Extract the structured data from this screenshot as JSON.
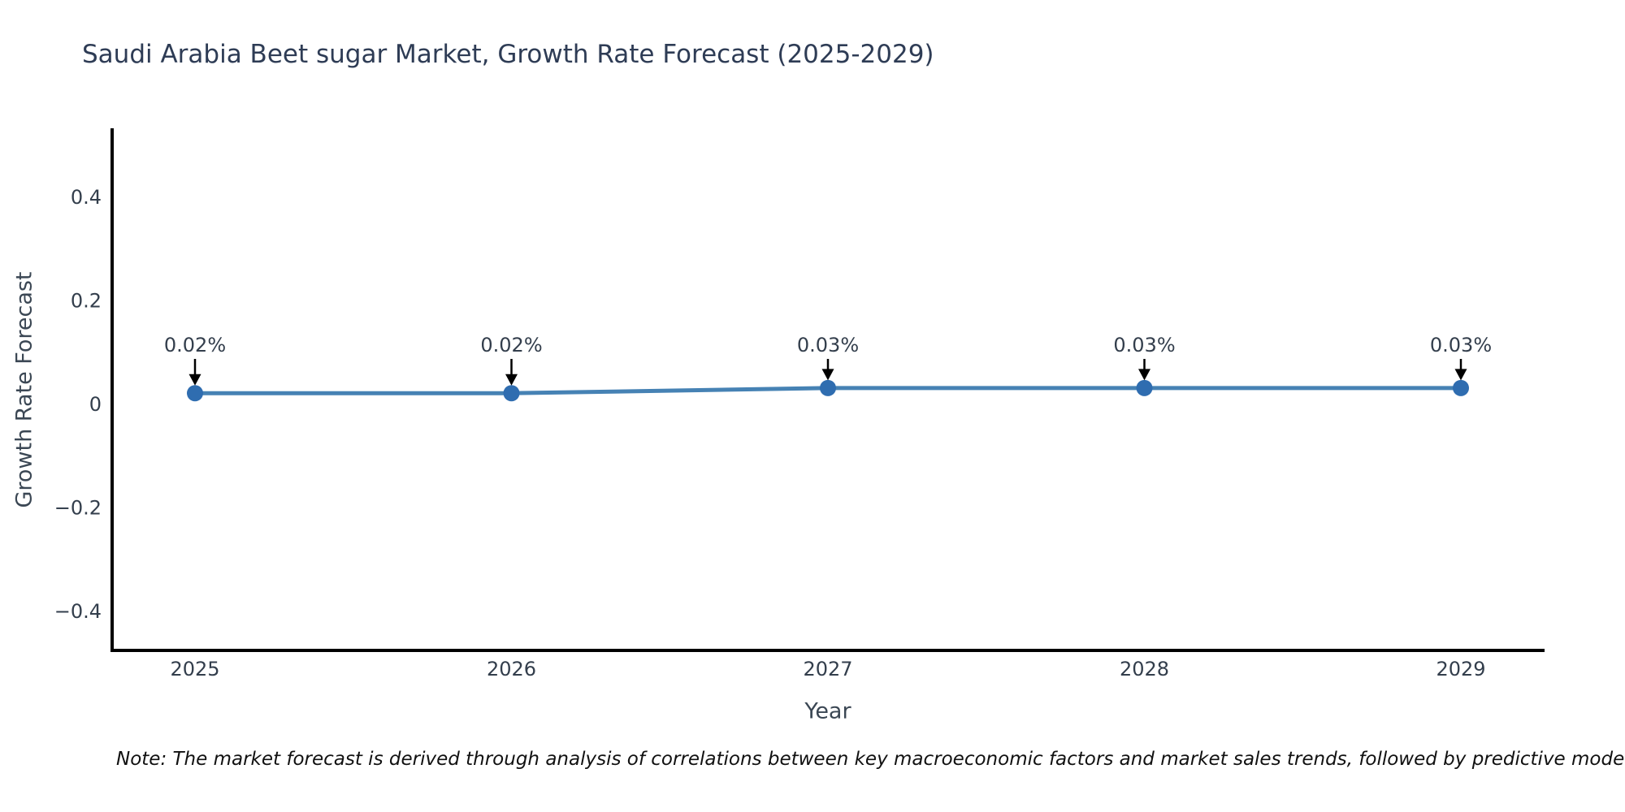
{
  "title": "Saudi Arabia Beet sugar Market, Growth Rate Forecast (2025-2029)",
  "note": "Note: The market forecast is derived through analysis of correlations between key macroeconomic factors and market sales trends, followed by predictive modeling to project future sal",
  "chart_data": {
    "type": "line",
    "title": "Saudi Arabia Beet sugar Market, Growth Rate Forecast (2025-2029)",
    "xlabel": "Year",
    "ylabel": "Growth Rate Forecast",
    "categories": [
      "2025",
      "2026",
      "2027",
      "2028",
      "2029"
    ],
    "values": [
      0.02,
      0.02,
      0.03,
      0.03,
      0.03
    ],
    "point_labels": [
      "0.02%",
      "0.02%",
      "0.03%",
      "0.03%",
      "0.03%"
    ],
    "yticks": [
      0.4,
      0.2,
      0,
      -0.2,
      -0.4
    ],
    "ytick_labels": [
      "0.4",
      "0.2",
      "0",
      "−0.2",
      "−0.4"
    ],
    "ylim": [
      -0.477,
      0.529
    ],
    "grid": false,
    "legend": "none",
    "annotation_style": "value label with downward arrow to each marker"
  },
  "colors": {
    "background": "#ffffff",
    "title": "#2e3c55",
    "axis_title": "#3b4754",
    "tick": "#333e4c",
    "spine": "#000000",
    "line": "#4682b4",
    "marker": "#2f6db0",
    "arrow": "#000000",
    "note": "#111111"
  }
}
